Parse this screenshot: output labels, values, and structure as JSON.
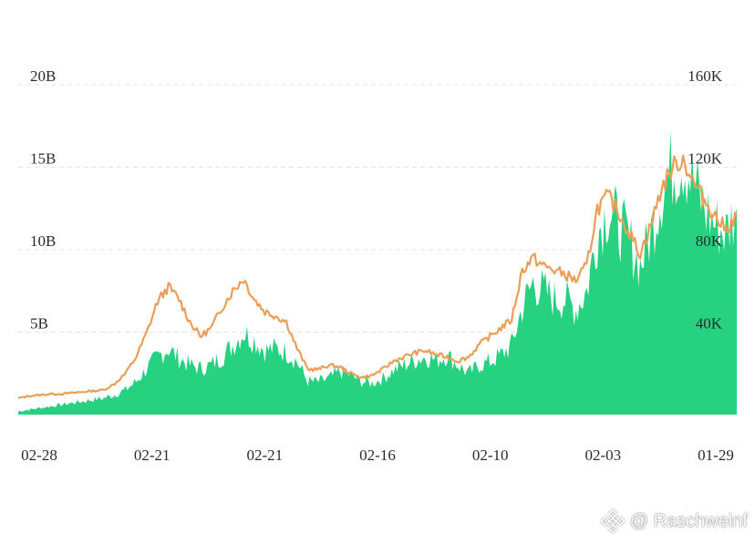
{
  "chart_data": {
    "type": "area",
    "title": "",
    "xlabel": "",
    "ylabel": "",
    "x_tick_labels": [
      "02-28",
      "02-21",
      "02-21",
      "02-16",
      "02-10",
      "02-03",
      "01-29"
    ],
    "y_left": {
      "ticks": [
        5,
        10,
        15,
        20
      ],
      "tick_labels": [
        "5B",
        "10B",
        "15B",
        "20B"
      ],
      "range": [
        0,
        20
      ],
      "unit": "B"
    },
    "y_right": {
      "ticks": [
        40,
        80,
        120,
        160
      ],
      "tick_labels": [
        "40K",
        "80K",
        "120K",
        "160K"
      ],
      "range": [
        0,
        160
      ],
      "unit": "K"
    },
    "grid": true,
    "legend": "none",
    "series": [
      {
        "kind": "area",
        "axis": "left",
        "color": "#26d27f",
        "values": [
          0.2,
          0.3,
          0.4,
          0.5,
          0.6,
          0.7,
          0.8,
          0.9,
          1.0,
          1.2,
          1.5,
          2.0,
          2.8,
          3.5,
          4.0,
          3.4,
          3.0,
          2.8,
          3.0,
          3.5,
          4.2,
          5.0,
          4.5,
          3.9,
          4.0,
          3.8,
          3.2,
          2.0,
          2.0,
          2.2,
          2.6,
          2.4,
          2.0,
          1.9,
          2.2,
          2.7,
          3.0,
          3.3,
          3.5,
          3.3,
          3.6,
          3.0,
          2.5,
          3.0,
          3.2,
          3.6,
          4.2,
          6.5,
          8.0,
          7.5,
          7.0,
          7.0,
          6.4,
          7.5,
          11.0,
          12.5,
          11.5,
          10.5,
          9.0,
          11.0,
          13.5,
          15.0,
          15.5,
          14.0,
          12.5,
          11.5,
          11.0,
          12.5
        ]
      },
      {
        "kind": "line",
        "axis": "right",
        "color": "#eb9e57",
        "values": [
          8,
          9,
          9.5,
          10,
          10,
          10.5,
          11,
          11.5,
          12,
          15,
          20,
          28,
          40,
          55,
          62,
          56,
          45,
          38,
          42,
          52,
          60,
          66,
          56,
          50,
          48,
          45,
          32,
          22,
          22,
          24,
          23,
          20,
          18,
          19,
          22,
          26,
          28,
          30,
          31,
          29,
          28,
          26,
          28,
          34,
          38,
          42,
          46,
          70,
          76,
          72,
          70,
          68,
          65,
          72,
          100,
          106,
          98,
          88,
          78,
          92,
          110,
          120,
          124,
          112,
          104,
          96,
          90,
          96
        ]
      }
    ]
  },
  "watermark": {
    "icon": "binance-logo-icon",
    "text": "@ Raschweinf"
  }
}
